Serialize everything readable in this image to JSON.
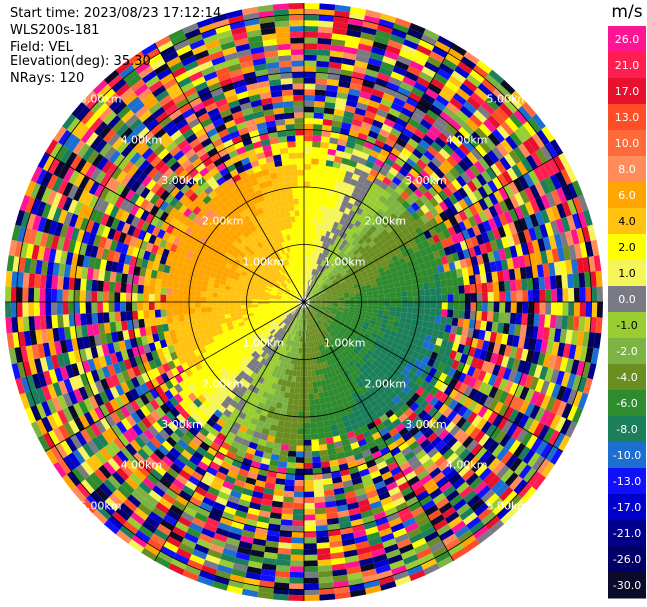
{
  "header": {
    "start_time": "Start time: 2023/08/23 17:12:14",
    "instrument": "WLS200s-181",
    "field": "Field: VEL",
    "elevation": "Elevation(deg): 35.30",
    "nrays": "NRays: 120"
  },
  "chart_data": {
    "type": "heatmap",
    "projection": "polar (PPI scan)",
    "field": "VEL",
    "units": "m/s",
    "elevation_deg": 35.3,
    "n_rays": 120,
    "range_ring_labels_km": [
      "1.00km",
      "2.00km",
      "3.00km",
      "4.00km",
      "5.00km"
    ],
    "range_rings_km": [
      1,
      2,
      3,
      4,
      5
    ],
    "max_range_km": 5.2,
    "colorbar": {
      "label": "m/s",
      "tick_labels": [
        "26.0",
        "21.0",
        "17.0",
        "13.0",
        "10.0",
        "8.0",
        "6.0",
        "4.0",
        "2.0",
        "1.0",
        "0.0",
        "-1.0",
        "-2.0",
        "-4.0",
        "-6.0",
        "-8.0",
        "-10.0",
        "-13.0",
        "-17.0",
        "-21.0",
        "-26.0",
        "-30.0"
      ],
      "colors": [
        "#ff1493",
        "#ff1e50",
        "#e8102c",
        "#ff4d26",
        "#ff6a3a",
        "#ff8c5a",
        "#ffa500",
        "#ffc20e",
        "#ffff00",
        "#f5f55a",
        "#7a7a85",
        "#9acd32",
        "#7cb342",
        "#6b8e23",
        "#2e8b2e",
        "#1a7f5a",
        "#1c6fd1",
        "#1010ff",
        "#0000cd",
        "#00008b",
        "#000066",
        "#0a0a2a"
      ]
    },
    "near_range_pattern": {
      "approaching_sector": "south-east half, negative velocities (-2 to -8 m/s, greens)",
      "receding_sector": "north-west half, positive velocities (2 to 6 m/s, yellow/orange)",
      "zero_line": "grey band near 0.0 m/s oriented roughly WNW–ESE through centre"
    },
    "far_range": "noise beyond ~2.5 km (random colours across full scale)"
  }
}
